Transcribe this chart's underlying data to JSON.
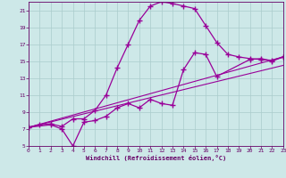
{
  "xlabel": "Windchill (Refroidissement éolien,°C)",
  "bg_color": "#cde8e8",
  "grid_color": "#aacccc",
  "line_color": "#990099",
  "tick_color": "#660066",
  "x_min": 0,
  "x_max": 23,
  "y_min": 5,
  "y_max": 22,
  "yticks": [
    5,
    7,
    9,
    11,
    13,
    15,
    17,
    19,
    21
  ],
  "xticks": [
    0,
    1,
    2,
    3,
    4,
    5,
    6,
    7,
    8,
    9,
    10,
    11,
    12,
    13,
    14,
    15,
    16,
    17,
    18,
    19,
    20,
    21,
    22,
    23
  ],
  "line1_x": [
    0,
    1,
    2,
    3,
    4,
    5,
    6,
    7,
    8,
    9,
    10,
    11,
    12,
    13,
    14,
    15,
    16,
    17,
    18,
    19,
    20,
    21,
    22,
    23
  ],
  "line1_y": [
    7.2,
    7.5,
    7.6,
    7.3,
    8.2,
    8.2,
    9.2,
    11.0,
    14.2,
    17.0,
    19.8,
    21.5,
    22.0,
    21.8,
    21.5,
    21.2,
    19.2,
    17.2,
    15.8,
    15.5,
    15.3,
    15.2,
    15.1,
    15.5
  ],
  "line2_x": [
    0,
    2,
    3,
    4,
    5,
    6,
    7,
    8,
    9,
    10,
    11,
    12,
    13,
    14,
    15,
    16,
    17,
    20,
    21,
    22,
    23
  ],
  "line2_y": [
    7.2,
    7.5,
    7.0,
    5.0,
    7.8,
    8.0,
    8.5,
    9.5,
    10.0,
    9.5,
    10.5,
    10.0,
    9.8,
    14.0,
    16.0,
    15.8,
    13.2,
    15.2,
    15.3,
    15.0,
    15.5
  ],
  "line3_x": [
    0,
    23
  ],
  "line3_y": [
    7.2,
    15.5
  ],
  "line4_x": [
    0,
    23
  ],
  "line4_y": [
    7.2,
    14.5
  ]
}
